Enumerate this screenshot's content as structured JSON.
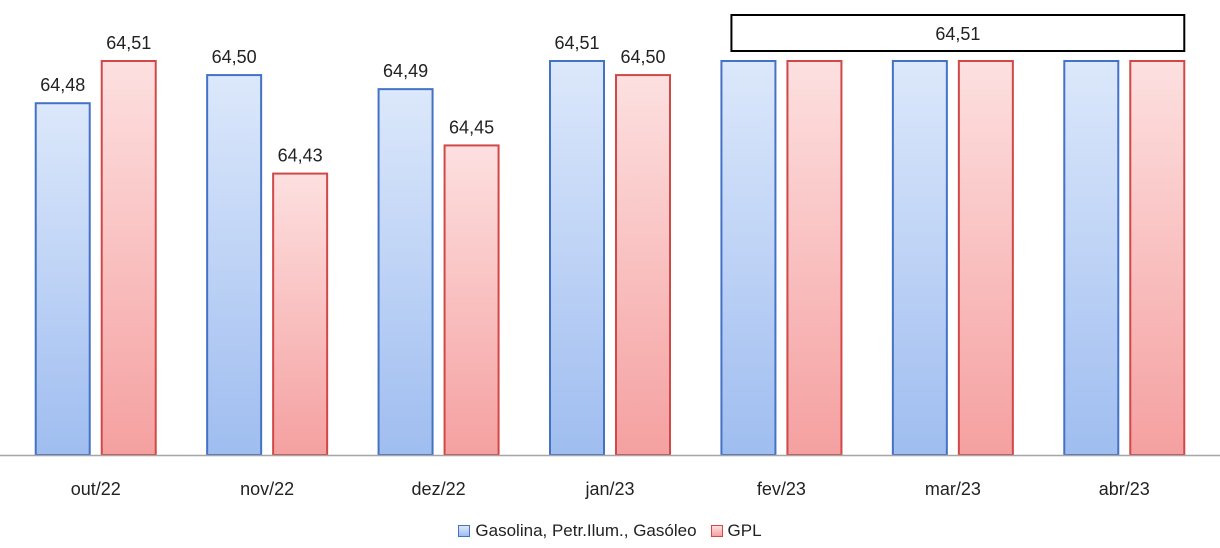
{
  "chart_data": {
    "type": "bar",
    "categories": [
      "out/22",
      "nov/22",
      "dez/22",
      "jan/23",
      "fev/23",
      "mar/23",
      "abr/23"
    ],
    "series": [
      {
        "name": "Gasolina, Petr.Ilum., Gasóleo",
        "values": [
          64.48,
          64.5,
          64.49,
          64.51,
          64.51,
          64.51,
          64.51
        ],
        "labels": [
          "64,48",
          "64,50",
          "64,49",
          "64,51",
          "",
          "",
          ""
        ],
        "color": "#4472c4",
        "fill_light": "#dce8fb",
        "fill_dark": "#9fbdf0"
      },
      {
        "name": "GPL",
        "values": [
          64.51,
          64.43,
          64.45,
          64.5,
          64.51,
          64.51,
          64.51
        ],
        "labels": [
          "64,51",
          "64,43",
          "64,45",
          "64,50",
          "",
          "",
          ""
        ],
        "color": "#d04848",
        "fill_light": "#fde0e0",
        "fill_dark": "#f5a0a0"
      }
    ],
    "annotation": {
      "text": "64,51",
      "from_category": "fev/23",
      "to_category": "abr/23"
    },
    "ylim": [
      64.23,
      64.51
    ],
    "grid": false,
    "legend_position": "bottom",
    "title": "",
    "xlabel": "",
    "ylabel": ""
  }
}
